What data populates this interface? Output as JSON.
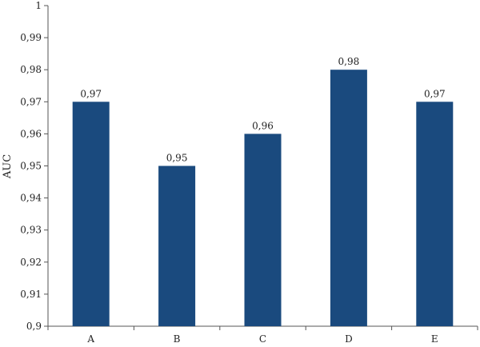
{
  "chart_data": {
    "type": "bar",
    "title": "",
    "xlabel": "",
    "ylabel": "AUC",
    "categories": [
      "A",
      "B",
      "C",
      "D",
      "E"
    ],
    "values": [
      0.97,
      0.95,
      0.96,
      0.98,
      0.97
    ],
    "value_labels": [
      "0,97",
      "0,95",
      "0,96",
      "0,98",
      "0,97"
    ],
    "ylim": [
      0.9,
      1.0
    ],
    "yticks": [
      0.9,
      0.91,
      0.92,
      0.93,
      0.94,
      0.95,
      0.96,
      0.97,
      0.98,
      0.99,
      1.0
    ],
    "ytick_labels": [
      "0,9",
      "0,91",
      "0,92",
      "0,93",
      "0,94",
      "0,95",
      "0,96",
      "0,97",
      "0,98",
      "0,99",
      "1"
    ],
    "grid": false,
    "legend": "none",
    "bar_color": "#1a4a7e"
  }
}
